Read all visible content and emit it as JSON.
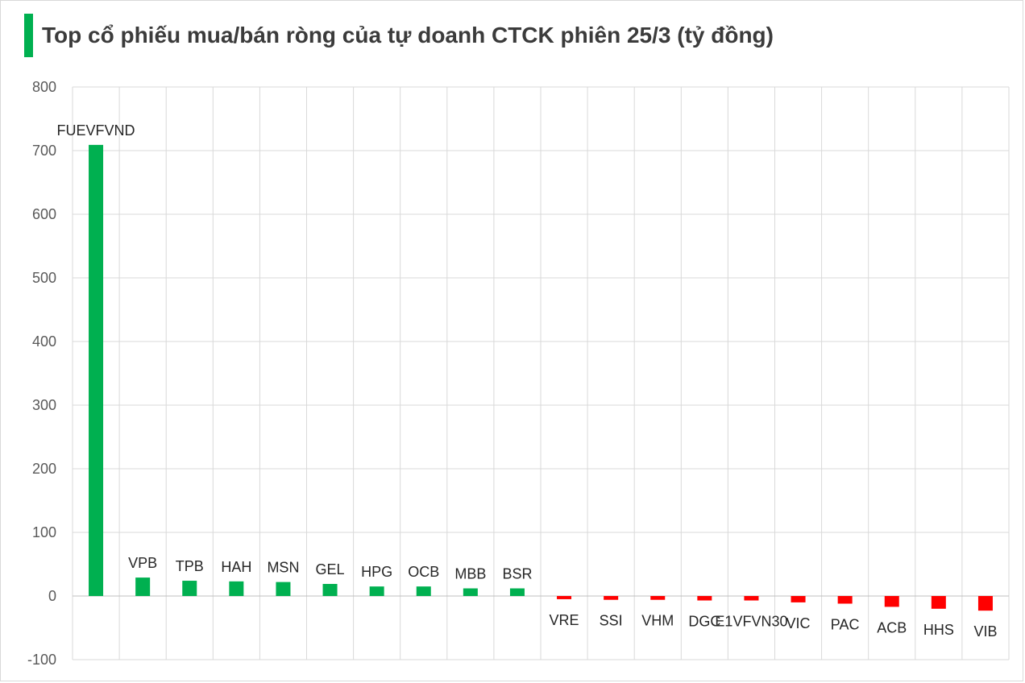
{
  "chart_data": {
    "type": "bar",
    "title": "Top cổ phiếu mua/bán ròng của tự doanh CTCK phiên 25/3 (tỷ đồng)",
    "categories": [
      "FUEVFVND",
      "VPB",
      "TPB",
      "HAH",
      "MSN",
      "GEL",
      "HPG",
      "OCB",
      "MBB",
      "BSR",
      "VRE",
      "SSI",
      "VHM",
      "DGC",
      "E1VFVN30",
      "VIC",
      "PAC",
      "ACB",
      "HHS",
      "VIB"
    ],
    "values": [
      709,
      29,
      24,
      23,
      22,
      19,
      15,
      15,
      12,
      12,
      -5,
      -6,
      -6,
      -7,
      -7,
      -10,
      -12,
      -17,
      -20,
      -23
    ],
    "ylim": [
      -100,
      800
    ],
    "yticks": [
      -100,
      0,
      100,
      200,
      300,
      400,
      500,
      600,
      700,
      800
    ],
    "xlabel": "",
    "ylabel": "",
    "grid": true,
    "colors": {
      "positive": "#00b050",
      "negative": "#ff0000",
      "grid": "#d9d9d9",
      "accent": "#00b050"
    }
  }
}
